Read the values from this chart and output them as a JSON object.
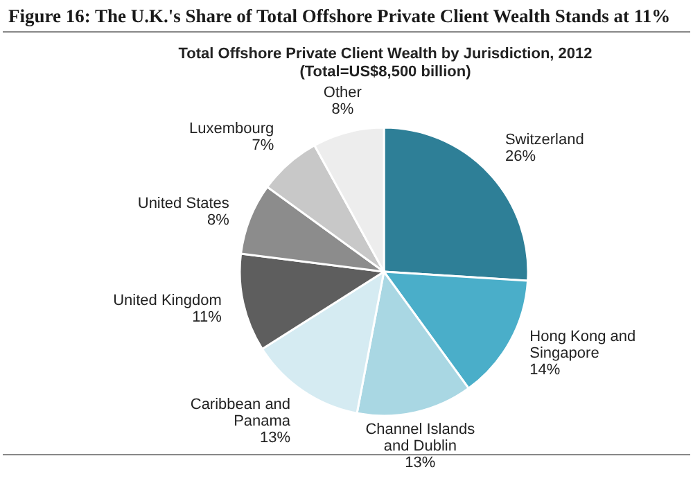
{
  "chart_data": {
    "type": "pie",
    "title": "Figure 16: The U.K.'s Share of Total Offshore Private Client Wealth Stands at 11%",
    "subtitle": "Total Offshore Private Client  Wealth by Jurisdiction, 2012\n(Total=US$8,500 billion)",
    "categories": [
      "Switzerland",
      "Hong Kong and\nSingapore",
      "Channel Islands\nand Dublin",
      "Caribbean and\nPanama",
      "United Kingdom",
      "United States",
      "Luxembourg",
      "Other"
    ],
    "values": [
      26,
      14,
      13,
      13,
      11,
      8,
      7,
      8
    ],
    "colors": [
      "#2e7f97",
      "#4aaec9",
      "#a9d7e3",
      "#d5ebf2",
      "#5e5e5e",
      "#8c8c8c",
      "#c8c8c8",
      "#ededed"
    ],
    "value_labels": [
      "26%",
      "14%",
      "13%",
      "13%",
      "11%",
      "8%",
      "7%",
      "8%"
    ]
  }
}
